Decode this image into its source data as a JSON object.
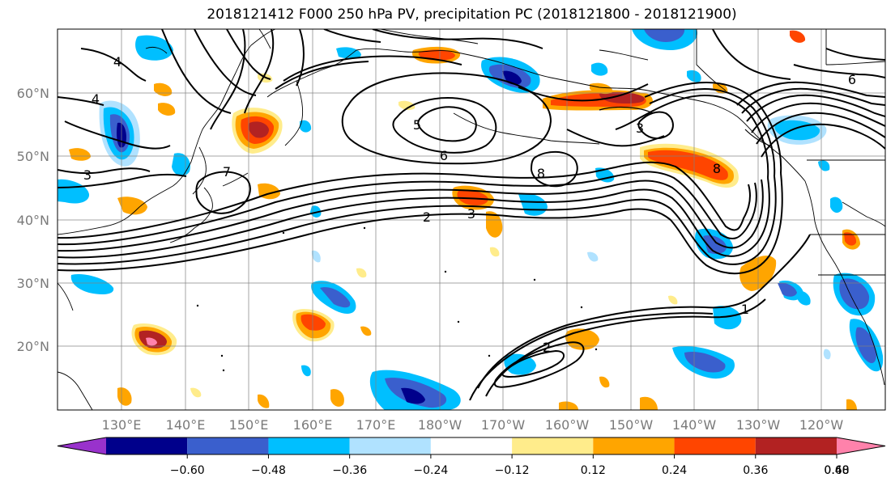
{
  "title": "2018121412 F000 250 hPa PV, precipitation PC (2018121800 - 2018121900)",
  "lat_labels": [
    "60°N",
    "50°N",
    "40°N",
    "30°N",
    "20°N"
  ],
  "lon_labels": [
    "130°E",
    "140°E",
    "150°E",
    "160°E",
    "170°E",
    "180°W",
    "170°W",
    "160°W",
    "150°W",
    "140°W",
    "130°W",
    "120°W"
  ],
  "colorbar": {
    "colors": [
      "#9932cc",
      "#00008b",
      "#3a5fcd",
      "#00bfff",
      "#b0e2ff",
      "#ffffff",
      "#ffec8b",
      "#ffa500",
      "#ff4500",
      "#b22222",
      "#ff82ab"
    ],
    "tick_labels": [
      "−0.60",
      "−0.48",
      "−0.36",
      "−0.24",
      "−0.12",
      "0.12",
      "0.24",
      "0.36",
      "0.48",
      "0.60"
    ]
  },
  "contour_labels": [
    "4",
    "3",
    "5",
    "6",
    "2",
    "3",
    "7",
    "8",
    "1",
    "6",
    "3",
    "4",
    "2",
    "8"
  ]
}
